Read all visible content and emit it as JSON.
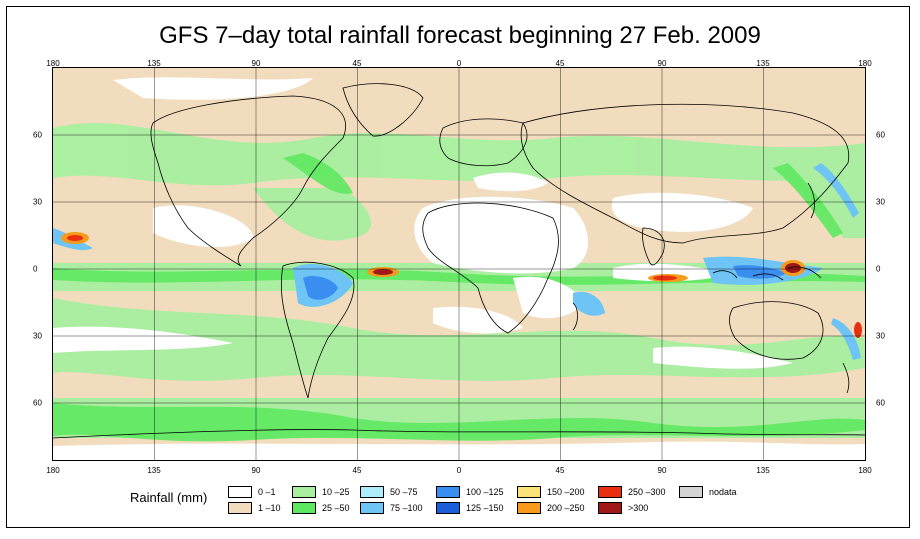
{
  "title": "GFS 7–day total rainfall forecast beginning 27 Feb. 2009",
  "longitude_ticks": [
    {
      "label": "180",
      "lon": -180
    },
    {
      "label": "135",
      "lon": -135
    },
    {
      "label": "90",
      "lon": -90
    },
    {
      "label": "45",
      "lon": -45
    },
    {
      "label": "0",
      "lon": 0
    },
    {
      "label": "45",
      "lon": 45
    },
    {
      "label": "90",
      "lon": 90
    },
    {
      "label": "135",
      "lon": 135
    },
    {
      "label": "180",
      "lon": 180
    }
  ],
  "latitude_ticks": [
    {
      "label": "60",
      "lat": 60
    },
    {
      "label": "30",
      "lat": 30
    },
    {
      "label": "0",
      "lat": 0
    },
    {
      "label": "30",
      "lat": -30
    },
    {
      "label": "60",
      "lat": -60
    }
  ],
  "map_extent": {
    "lon": [
      -180,
      180
    ],
    "lat": [
      -85,
      90
    ]
  },
  "legend": {
    "title": "Rainfall (mm)",
    "items": [
      {
        "label": "0 –1",
        "color": "#ffffff"
      },
      {
        "label": "1 –10",
        "color": "#f2dcbe"
      },
      {
        "label": "10 –25",
        "color": "#a8f0a0"
      },
      {
        "label": "25 –50",
        "color": "#5ee860"
      },
      {
        "label": "50 –75",
        "color": "#aeeefa"
      },
      {
        "label": "75 –100",
        "color": "#6ec4f4"
      },
      {
        "label": "100 –125",
        "color": "#3a8ef0"
      },
      {
        "label": "125 –150",
        "color": "#1a5edc"
      },
      {
        "label": "150 –200",
        "color": "#fde27a"
      },
      {
        "label": "200 –250",
        "color": "#f89a1c"
      },
      {
        "label": "250 –300",
        "color": "#e83010"
      },
      {
        "label": ">300",
        "color": "#a01818"
      },
      {
        "label": "nodata",
        "color": "#d4d4d4"
      }
    ]
  }
}
